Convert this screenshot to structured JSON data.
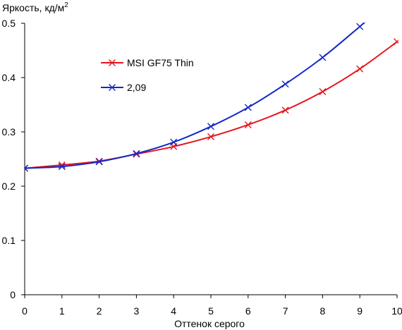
{
  "chart_data": {
    "type": "line",
    "title": "",
    "ylabel": "Яркость, кд/м",
    "ylabel_sup": "2",
    "xlabel": "Оттенок серого",
    "xlim": [
      0,
      10
    ],
    "ylim": [
      0,
      0.5
    ],
    "x_ticks": [
      0,
      1,
      2,
      3,
      4,
      5,
      6,
      7,
      8,
      9,
      10
    ],
    "y_ticks": [
      0,
      0.1,
      0.2,
      0.3,
      0.4,
      0.5
    ],
    "x_tick_labels": [
      "0",
      "1",
      "2",
      "3",
      "4",
      "5",
      "6",
      "7",
      "8",
      "9",
      "10"
    ],
    "y_tick_labels": [
      "0",
      "0.1",
      "0.2",
      "0.3",
      "0.4",
      "0.5"
    ],
    "grid": false,
    "legend_position": "upper-left-inside",
    "series": [
      {
        "name": "MSI GF75 Thin",
        "color": "#e8141c",
        "marker": "x",
        "x": [
          0,
          1,
          2,
          3,
          4,
          5,
          6,
          7,
          8,
          9,
          10
        ],
        "y": [
          0.233,
          0.239,
          0.246,
          0.259,
          0.273,
          0.291,
          0.313,
          0.34,
          0.374,
          0.416,
          0.466
        ]
      },
      {
        "name": "2,09",
        "color": "#1428c8",
        "marker": "x",
        "x": [
          0,
          1,
          2,
          3,
          4,
          5,
          6,
          7,
          8,
          9
        ],
        "y": [
          0.233,
          0.236,
          0.245,
          0.26,
          0.281,
          0.31,
          0.345,
          0.388,
          0.437,
          0.494
        ],
        "continues_to": [
          9.2,
          0.506
        ]
      }
    ]
  }
}
